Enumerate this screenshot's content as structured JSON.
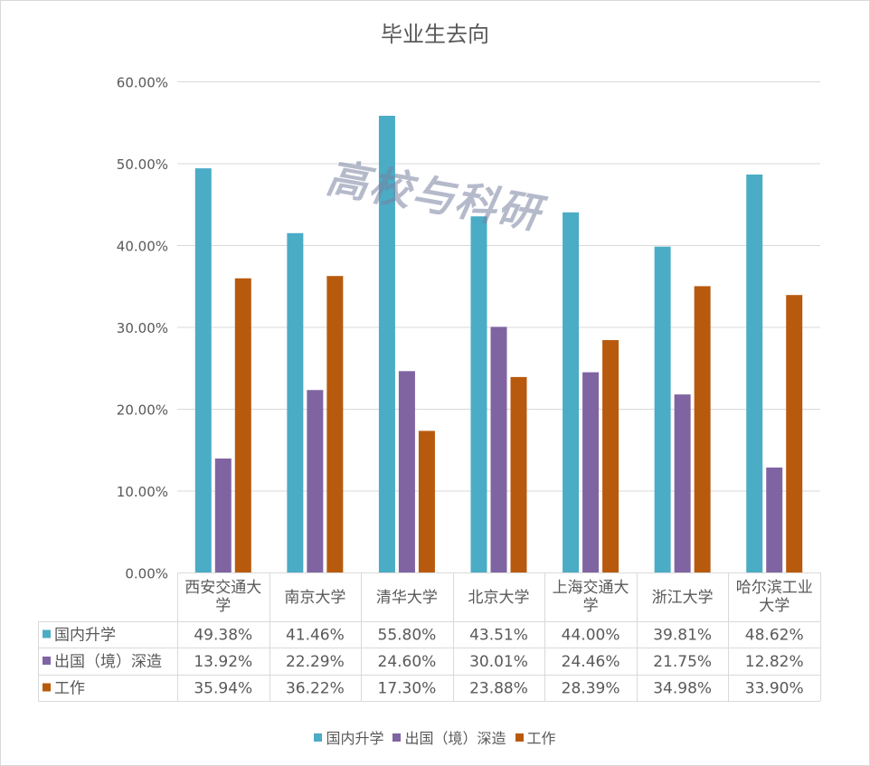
{
  "chart_data": {
    "type": "bar",
    "title": "毕业生去向",
    "categories": [
      "西安交通大学",
      "南京大学",
      "清华大学",
      "北京大学",
      "上海交通大学",
      "浙江大学",
      "哈尔滨工业大学"
    ],
    "series": [
      {
        "name": "国内升学",
        "color": "#4bacc6",
        "values": [
          49.38,
          41.46,
          55.8,
          43.51,
          44.0,
          39.81,
          48.62
        ]
      },
      {
        "name": "出国（境）深造",
        "color": "#8064a2",
        "values": [
          13.92,
          22.29,
          24.6,
          30.01,
          24.46,
          21.75,
          12.82
        ]
      },
      {
        "name": "工作",
        "color": "#b85a0d",
        "values": [
          35.94,
          36.22,
          17.3,
          23.88,
          28.39,
          34.98,
          33.9
        ]
      }
    ],
    "ylim": [
      0,
      60
    ],
    "yticks": [
      "0.00%",
      "10.00%",
      "20.00%",
      "30.00%",
      "40.00%",
      "50.00%",
      "60.00%"
    ],
    "grid": true,
    "data_table": true,
    "legend": "bottom",
    "table_values": [
      [
        "49.38%",
        "41.46%",
        "55.80%",
        "43.51%",
        "44.00%",
        "39.81%",
        "48.62%"
      ],
      [
        "13.92%",
        "22.29%",
        "24.60%",
        "30.01%",
        "24.46%",
        "21.75%",
        "12.82%"
      ],
      [
        "35.94%",
        "36.22%",
        "17.30%",
        "23.88%",
        "28.39%",
        "34.98%",
        "33.90%"
      ]
    ]
  },
  "watermark": "高校与科研"
}
